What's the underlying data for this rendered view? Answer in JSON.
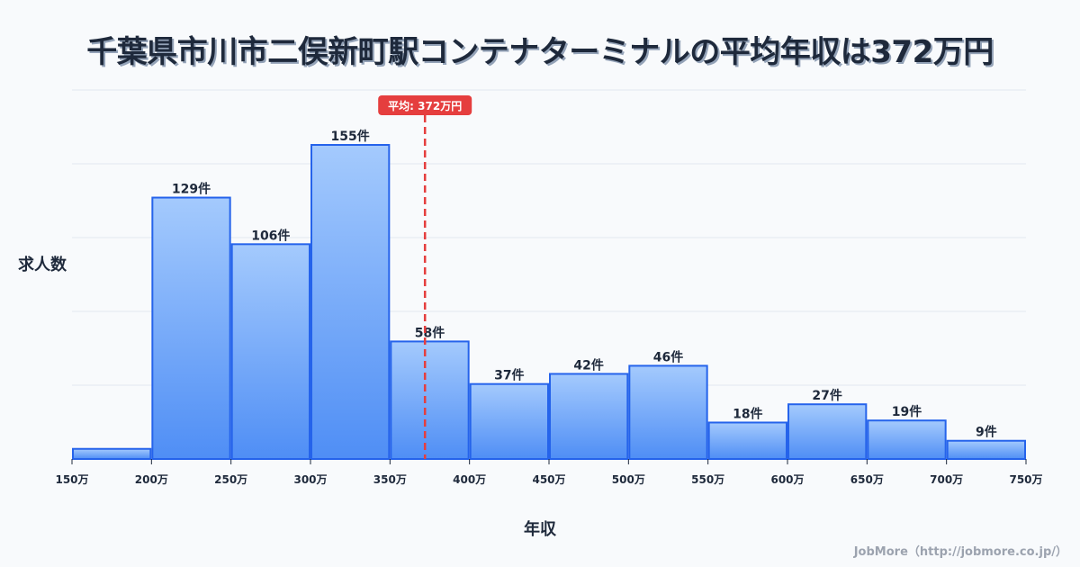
{
  "title": "千葉県市川市二俣新町駅コンテナターミナルの平均年収は372万円",
  "average_badge": "平均: 372万円",
  "credit": "JobMore（http://jobmore.co.jp/）",
  "colors": {
    "bar_fill_top": "#a4cafd",
    "bar_fill_bottom": "#4f8ef5",
    "bar_stroke": "#2563eb",
    "avg_line": "#e53e3e",
    "grid": "#e2e8f0"
  },
  "chart_data": {
    "type": "bar",
    "title": "千葉県市川市二俣新町駅コンテナターミナルの平均年収は372万円",
    "xlabel": "年収",
    "ylabel": "求人数",
    "categories": [
      "150-200万",
      "200-250万",
      "250-300万",
      "300-350万",
      "350-400万",
      "400-450万",
      "450-500万",
      "500-550万",
      "550-600万",
      "600-650万",
      "650-700万",
      "700-750万"
    ],
    "values": [
      5,
      129,
      106,
      155,
      58,
      37,
      42,
      46,
      18,
      27,
      19,
      9
    ],
    "labels": [
      "",
      "129件",
      "106件",
      "155件",
      "58件",
      "37件",
      "42件",
      "46件",
      "18件",
      "27件",
      "19件",
      "9件"
    ],
    "x_ticks": [
      "150万",
      "200万",
      "250万",
      "300万",
      "350万",
      "400万",
      "450万",
      "500万",
      "550万",
      "600万",
      "650万",
      "700万",
      "750万"
    ],
    "average": 372,
    "average_label": "平均: 372万円",
    "ylim": [
      0,
      182
    ],
    "grid": true,
    "legend": "none"
  }
}
